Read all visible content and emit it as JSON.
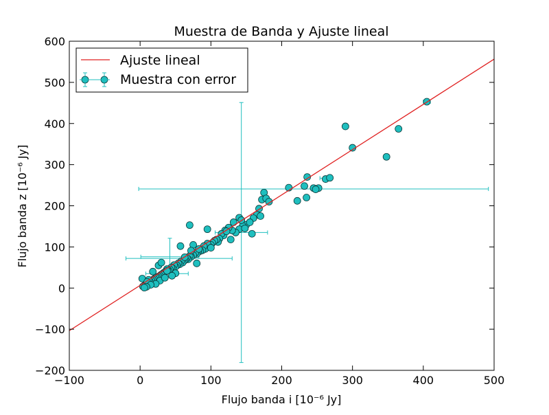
{
  "chart_data": {
    "type": "scatter",
    "title": "Muestra de Banda y Ajuste lineal",
    "xlabel": "Flujo banda i [10⁻⁶ Jy]",
    "ylabel": "Flujo banda z [10⁻⁶ Jy]",
    "xlim": [
      -100,
      500
    ],
    "ylim": [
      -200,
      600
    ],
    "xticks": [
      -100,
      0,
      100,
      200,
      300,
      400,
      500
    ],
    "yticks": [
      -200,
      -100,
      0,
      100,
      200,
      300,
      400,
      500,
      600
    ],
    "grid": false,
    "legend_position": "top-left",
    "legend": [
      "Ajuste lineal",
      "Muestra con error"
    ],
    "colors": {
      "fit": "#e02020",
      "points": "#1fbfbf",
      "errorbars": "#1fbfbf"
    },
    "fit_line": {
      "name": "Ajuste lineal",
      "slope": 1.1,
      "intercept": 6.5
    },
    "series": [
      {
        "name": "Muestra con error",
        "x": [
          405,
          290,
          365,
          300,
          348,
          245,
          232,
          236,
          210,
          252,
          248,
          262,
          268,
          235,
          222,
          175,
          172,
          178,
          182,
          168,
          165,
          170,
          160,
          150,
          155,
          145,
          140,
          135,
          130,
          128,
          125,
          120,
          118,
          115,
          112,
          110,
          108,
          105,
          102,
          100,
          98,
          95,
          92,
          90,
          88,
          85,
          82,
          80,
          78,
          75,
          72,
          70,
          68,
          66,
          64,
          62,
          60,
          58,
          56,
          54,
          52,
          50,
          48,
          46,
          44,
          42,
          40,
          38,
          36,
          34,
          32,
          30,
          28,
          26,
          24,
          22,
          20,
          18,
          16,
          14,
          12,
          10,
          8,
          6,
          4,
          3,
          140,
          143,
          70,
          95,
          57,
          75,
          72,
          83,
          100,
          122,
          132,
          148,
          158,
          26,
          30,
          18,
          12,
          10,
          63,
          80,
          50,
          45,
          38,
          28,
          35,
          22,
          15,
          9,
          6
        ],
        "y": [
          453,
          393,
          387,
          341,
          319,
          243,
          248,
          270,
          244,
          243,
          240,
          265,
          268,
          220,
          212,
          232,
          215,
          218,
          210,
          193,
          178,
          175,
          170,
          154,
          160,
          151,
          143,
          135,
          140,
          118,
          147,
          140,
          128,
          132,
          120,
          112,
          118,
          115,
          110,
          105,
          100,
          108,
          95,
          102,
          92,
          90,
          88,
          83,
          86,
          80,
          76,
          78,
          70,
          73,
          69,
          66,
          62,
          65,
          58,
          60,
          55,
          52,
          56,
          48,
          50,
          45,
          43,
          46,
          40,
          38,
          35,
          33,
          30,
          28,
          26,
          25,
          22,
          20,
          18,
          15,
          12,
          11,
          8,
          6,
          4,
          23,
          171,
          165,
          153,
          143,
          102,
          105,
          91,
          95,
          98,
          138,
          160,
          145,
          132,
          55,
          62,
          40,
          20,
          15,
          75,
          60,
          36,
          30,
          42,
          18,
          25,
          10,
          8,
          3,
          1
        ],
        "error_bars": [
          {
            "x": 143,
            "y": 135,
            "xerr": 37,
            "yerr": 316
          },
          {
            "x": 245,
            "y": 241,
            "xerr": 247,
            "yerr": 0
          },
          {
            "x": 42,
            "y": 76,
            "xerr": 41,
            "yerr": 45
          },
          {
            "x": 55,
            "y": 72,
            "xerr": 75,
            "yerr": 0
          },
          {
            "x": 38,
            "y": 35,
            "xerr": 30,
            "yerr": 0
          },
          {
            "x": 262,
            "y": 267,
            "xerr": 8,
            "yerr": 0
          },
          {
            "x": 405,
            "y": 453,
            "xerr": 5,
            "yerr": 0
          },
          {
            "x": 300,
            "y": 341,
            "xerr": 4,
            "yerr": 0
          }
        ]
      }
    ]
  }
}
